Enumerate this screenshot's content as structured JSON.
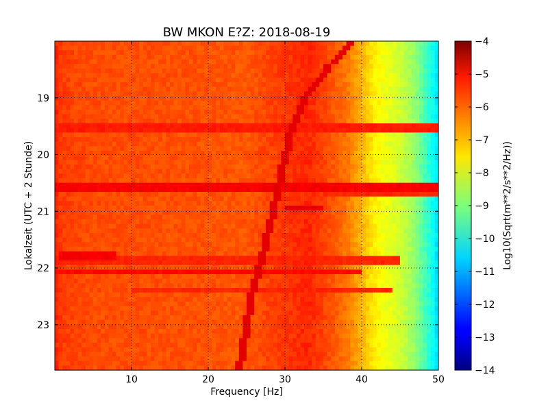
{
  "chart_data": {
    "type": "heatmap",
    "title": "BW MKON E?Z: 2018-08-19",
    "xlabel": "Frequency [Hz]",
    "ylabel": "Lokalzeit (UTC + 2 Stunde)",
    "xlim": [
      0,
      50
    ],
    "ylim": [
      18,
      23.8
    ],
    "y_inverted": true,
    "grid": true,
    "x_ticks": [
      10,
      20,
      30,
      40,
      50
    ],
    "x_tick_labels": [
      "10",
      "20",
      "30",
      "40",
      "50"
    ],
    "y_ticks": [
      19,
      20,
      21,
      22,
      23
    ],
    "y_tick_labels": [
      "19",
      "20",
      "21",
      "22",
      "23"
    ],
    "colorbar": {
      "label": "Log10(Sqrt(m**2/s**2/Hz))",
      "range": [
        -14,
        -4
      ],
      "ticks": [
        -4,
        -5,
        -6,
        -7,
        -8,
        -9,
        -10,
        -11,
        -12,
        -13,
        -14
      ],
      "tick_labels": [
        "−4",
        "−5",
        "−6",
        "−7",
        "−8",
        "−9",
        "−10",
        "−11",
        "−12",
        "−13",
        "−14"
      ],
      "colormap": "jet"
    },
    "spectral_profile": {
      "frequency_hz": [
        0,
        0.5,
        2,
        5,
        10,
        20,
        25,
        28,
        30,
        33,
        35,
        38,
        40,
        41,
        43,
        45,
        47,
        48,
        49,
        50
      ],
      "log10_amplitude": [
        -5.5,
        -5.8,
        -5.9,
        -6.0,
        -6.0,
        -6.05,
        -6.1,
        -5.9,
        -5.8,
        -5.6,
        -5.9,
        -6.4,
        -7.0,
        -7.4,
        -7.9,
        -8.2,
        -8.8,
        -9.4,
        -10.0,
        -10.6
      ]
    },
    "horizontal_bands": [
      {
        "hour": 19.55,
        "fmin": 0,
        "fmax": 50,
        "log10_amplitude": -5.5
      },
      {
        "hour": 20.6,
        "fmin": 0,
        "fmax": 50,
        "log10_amplitude": -5.2
      },
      {
        "hour": 20.68,
        "fmin": 35,
        "fmax": 50,
        "log10_amplitude": -5.6
      },
      {
        "hour": 21.8,
        "fmin": 0.5,
        "fmax": 8,
        "log10_amplitude": -5.2
      },
      {
        "hour": 21.88,
        "fmin": 0,
        "fmax": 45,
        "log10_amplitude": -5.6
      },
      {
        "hour": 22.08,
        "fmin": 0,
        "fmax": 40,
        "log10_amplitude": -5.3
      },
      {
        "hour": 22.38,
        "fmin": 10,
        "fmax": 44,
        "log10_amplitude": -5.6
      },
      {
        "hour": 20.95,
        "fmin": 30,
        "fmax": 35,
        "log10_amplitude": -5.0
      }
    ],
    "drifting_line": {
      "points": [
        [
          38.5,
          18.05
        ],
        [
          36,
          18.4
        ],
        [
          33,
          18.9
        ],
        [
          31,
          19.5
        ],
        [
          29.5,
          20.3
        ],
        [
          28.5,
          21.0
        ],
        [
          27,
          21.8
        ],
        [
          25.5,
          22.6
        ],
        [
          24,
          23.8
        ]
      ],
      "log10_amplitude": -5.0
    }
  }
}
